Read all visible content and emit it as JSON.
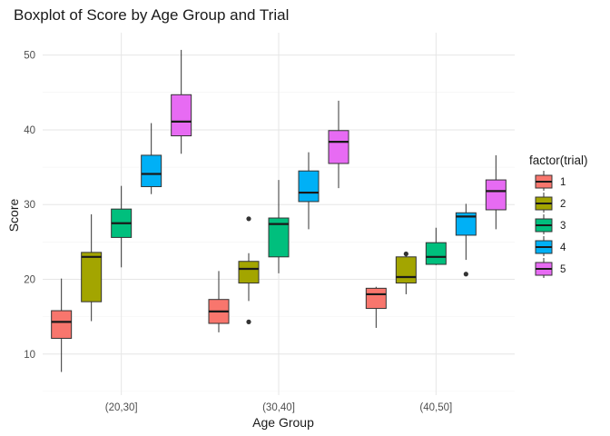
{
  "chart_data": {
    "type": "boxplot",
    "title": "Boxplot of Score by Age Group and Trial",
    "xlabel": "Age Group",
    "ylabel": "Score",
    "categories": [
      "(20,30]",
      "(30,40]",
      "(40,50]"
    ],
    "ylim": [
      4.5,
      53
    ],
    "yticks": [
      10,
      20,
      30,
      40,
      50
    ],
    "grid": true,
    "legend": {
      "title": "factor(trial)",
      "position": "right"
    },
    "series": [
      {
        "name": "1",
        "color": "#F8766D",
        "boxes": [
          {
            "min": 7.6,
            "q1": 12.1,
            "median": 14.3,
            "q3": 15.8,
            "max": 20.1,
            "outliers": []
          },
          {
            "min": 12.9,
            "q1": 14.1,
            "median": 15.7,
            "q3": 17.3,
            "max": 21.1,
            "outliers": []
          },
          {
            "min": 13.5,
            "q1": 16.1,
            "median": 18.0,
            "q3": 18.8,
            "max": 19.0,
            "outliers": []
          }
        ]
      },
      {
        "name": "2",
        "color": "#A3A500",
        "boxes": [
          {
            "min": 14.4,
            "q1": 17.0,
            "median": 23.0,
            "q3": 23.6,
            "max": 28.7,
            "outliers": []
          },
          {
            "min": 17.1,
            "q1": 19.5,
            "median": 21.4,
            "q3": 22.4,
            "max": 23.5,
            "outliers": [
              28.1,
              14.3
            ]
          },
          {
            "min": 18.0,
            "q1": 19.5,
            "median": 20.3,
            "q3": 23.0,
            "max": 23.6,
            "outliers": [
              23.4
            ]
          }
        ]
      },
      {
        "name": "3",
        "color": "#00BF7D",
        "boxes": [
          {
            "min": 21.6,
            "q1": 25.6,
            "median": 27.5,
            "q3": 29.4,
            "max": 32.5,
            "outliers": []
          },
          {
            "min": 20.8,
            "q1": 23.0,
            "median": 27.4,
            "q3": 28.2,
            "max": 33.3,
            "outliers": []
          },
          {
            "min": 21.9,
            "q1": 22.0,
            "median": 23.0,
            "q3": 24.9,
            "max": 26.9,
            "outliers": []
          }
        ]
      },
      {
        "name": "4",
        "color": "#00B0F6",
        "boxes": [
          {
            "min": 31.4,
            "q1": 32.4,
            "median": 34.1,
            "q3": 36.6,
            "max": 40.9,
            "outliers": []
          },
          {
            "min": 26.7,
            "q1": 30.4,
            "median": 31.6,
            "q3": 34.5,
            "max": 37.0,
            "outliers": []
          },
          {
            "min": 22.6,
            "q1": 25.9,
            "median": 28.4,
            "q3": 28.9,
            "max": 30.1,
            "outliers": [
              20.7
            ]
          }
        ]
      },
      {
        "name": "5",
        "color": "#E76BF3",
        "boxes": [
          {
            "min": 36.8,
            "q1": 39.2,
            "median": 41.1,
            "q3": 44.7,
            "max": 50.7,
            "outliers": []
          },
          {
            "min": 32.2,
            "q1": 35.5,
            "median": 38.4,
            "q3": 39.9,
            "max": 43.9,
            "outliers": []
          },
          {
            "min": 26.7,
            "q1": 29.3,
            "median": 31.8,
            "q3": 33.3,
            "max": 36.6,
            "outliers": []
          }
        ]
      }
    ]
  }
}
